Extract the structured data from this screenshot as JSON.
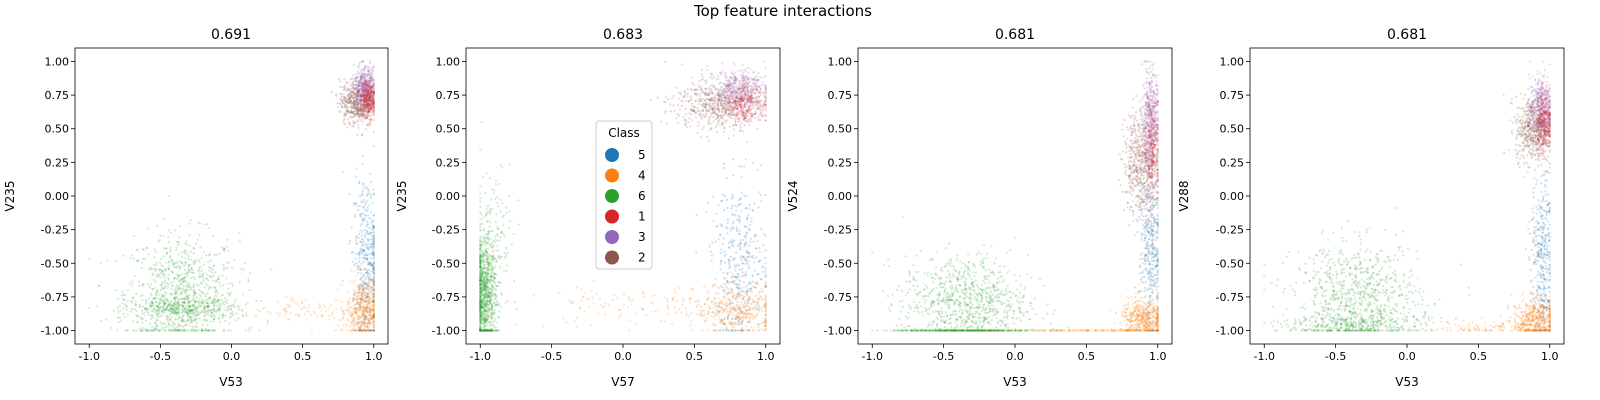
{
  "figure_title": "Top feature interactions",
  "colors": {
    "5": "#1f77b4",
    "4": "#ff7f0e",
    "6": "#2ca02c",
    "1": "#d62728",
    "3": "#9467bd",
    "2": "#8c564b"
  },
  "legend": {
    "title": "Class",
    "entries": [
      "5",
      "4",
      "6",
      "1",
      "3",
      "2"
    ]
  },
  "chart_data": [
    {
      "type": "scatter",
      "title": "0.691",
      "xlabel": "V53",
      "ylabel": "V235",
      "xlim": [
        -1.1,
        1.1
      ],
      "ylim": [
        -1.1,
        1.1
      ],
      "xticks": [
        "-1.0",
        "-0.5",
        "0.0",
        "0.5",
        "1.0"
      ],
      "yticks": [
        "-1.00",
        "-0.75",
        "-0.50",
        "-0.25",
        "0.00",
        "0.25",
        "0.50",
        "0.75",
        "1.00"
      ],
      "grid": false,
      "series": [
        {
          "name": "6",
          "cx": -0.35,
          "cy": -0.72,
          "sx": 0.2,
          "sy": 0.22,
          "n": 800
        },
        {
          "name": "6",
          "cx": -0.35,
          "cy": -0.84,
          "sx": 0.2,
          "sy": 0.05,
          "n": 400
        },
        {
          "name": "4",
          "cx": 0.93,
          "cy": -0.85,
          "sx": 0.06,
          "sy": 0.12,
          "n": 500
        },
        {
          "name": "4",
          "cx": 0.5,
          "cy": -0.85,
          "sx": 0.22,
          "sy": 0.06,
          "n": 90
        },
        {
          "name": "5",
          "cx": 0.95,
          "cy": -0.45,
          "sx": 0.05,
          "sy": 0.3,
          "n": 400
        },
        {
          "name": "2",
          "cx": 0.88,
          "cy": 0.7,
          "sx": 0.06,
          "sy": 0.08,
          "n": 500
        },
        {
          "name": "3",
          "cx": 0.94,
          "cy": 0.8,
          "sx": 0.04,
          "sy": 0.08,
          "n": 400
        },
        {
          "name": "1",
          "cx": 0.96,
          "cy": 0.72,
          "sx": 0.03,
          "sy": 0.08,
          "n": 300
        }
      ]
    },
    {
      "type": "scatter",
      "title": "0.683",
      "xlabel": "V57",
      "ylabel": "V235",
      "xlim": [
        -1.1,
        1.1
      ],
      "ylim": [
        -1.1,
        1.1
      ],
      "xticks": [
        "-1.0",
        "-0.5",
        "0.0",
        "0.5",
        "1.0"
      ],
      "yticks": [
        "-1.00",
        "-0.75",
        "-0.50",
        "-0.25",
        "0.00",
        "0.25",
        "0.50",
        "0.75",
        "1.00"
      ],
      "grid": false,
      "series": [
        {
          "name": "6",
          "cx": -0.97,
          "cy": -0.75,
          "sx": 0.04,
          "sy": 0.22,
          "n": 900
        },
        {
          "name": "6",
          "cx": -0.9,
          "cy": -0.3,
          "sx": 0.08,
          "sy": 0.3,
          "n": 150
        },
        {
          "name": "4",
          "cx": 0.8,
          "cy": -0.85,
          "sx": 0.15,
          "sy": 0.1,
          "n": 400
        },
        {
          "name": "4",
          "cx": 0.1,
          "cy": -0.82,
          "sx": 0.4,
          "sy": 0.08,
          "n": 120
        },
        {
          "name": "5",
          "cx": 0.82,
          "cy": -0.5,
          "sx": 0.1,
          "sy": 0.3,
          "n": 400
        },
        {
          "name": "2",
          "cx": 0.65,
          "cy": 0.68,
          "sx": 0.15,
          "sy": 0.1,
          "n": 500
        },
        {
          "name": "3",
          "cx": 0.8,
          "cy": 0.78,
          "sx": 0.1,
          "sy": 0.08,
          "n": 400
        },
        {
          "name": "1",
          "cx": 0.85,
          "cy": 0.7,
          "sx": 0.08,
          "sy": 0.08,
          "n": 300
        }
      ]
    },
    {
      "type": "scatter",
      "title": "0.681",
      "xlabel": "V53",
      "ylabel": "V524",
      "xlim": [
        -1.1,
        1.1
      ],
      "ylim": [
        -1.1,
        1.1
      ],
      "xticks": [
        "-1.0",
        "-0.5",
        "0.0",
        "0.5",
        "1.0"
      ],
      "yticks": [
        "-1.00",
        "-0.75",
        "-0.50",
        "-0.25",
        "0.00",
        "0.25",
        "0.50",
        "0.75",
        "1.00"
      ],
      "grid": false,
      "series": [
        {
          "name": "6",
          "cx": -0.35,
          "cy": -0.8,
          "sx": 0.22,
          "sy": 0.18,
          "n": 900
        },
        {
          "name": "6",
          "cx": -0.35,
          "cy": -1.0,
          "sx": 0.25,
          "sy": 0.0,
          "n": 300
        },
        {
          "name": "4",
          "cx": 0.9,
          "cy": -0.92,
          "sx": 0.08,
          "sy": 0.08,
          "n": 500
        },
        {
          "name": "4",
          "cx": 0.5,
          "cy": -1.0,
          "sx": 0.25,
          "sy": 0.0,
          "n": 120
        },
        {
          "name": "5",
          "cx": 0.95,
          "cy": -0.4,
          "sx": 0.04,
          "sy": 0.3,
          "n": 350
        },
        {
          "name": "2",
          "cx": 0.88,
          "cy": 0.25,
          "sx": 0.06,
          "sy": 0.2,
          "n": 500
        },
        {
          "name": "3",
          "cx": 0.95,
          "cy": 0.55,
          "sx": 0.03,
          "sy": 0.2,
          "n": 400
        },
        {
          "name": "1",
          "cx": 0.96,
          "cy": 0.35,
          "sx": 0.03,
          "sy": 0.2,
          "n": 300
        }
      ]
    },
    {
      "type": "scatter",
      "title": "0.681",
      "xlabel": "V53",
      "ylabel": "V288",
      "xlim": [
        -1.1,
        1.1
      ],
      "ylim": [
        -1.1,
        1.1
      ],
      "xticks": [
        "-1.0",
        "-0.5",
        "0.0",
        "0.5",
        "1.0"
      ],
      "yticks": [
        "-1.00",
        "-0.75",
        "-0.50",
        "-0.25",
        "0.00",
        "0.25",
        "0.50",
        "0.75",
        "1.00"
      ],
      "grid": false,
      "series": [
        {
          "name": "6",
          "cx": -0.35,
          "cy": -0.75,
          "sx": 0.22,
          "sy": 0.2,
          "n": 800
        },
        {
          "name": "6",
          "cx": -0.35,
          "cy": -0.95,
          "sx": 0.25,
          "sy": 0.04,
          "n": 300
        },
        {
          "name": "4",
          "cx": 0.9,
          "cy": -0.92,
          "sx": 0.08,
          "sy": 0.08,
          "n": 500
        },
        {
          "name": "4",
          "cx": 0.55,
          "cy": -0.98,
          "sx": 0.2,
          "sy": 0.03,
          "n": 100
        },
        {
          "name": "5",
          "cx": 0.95,
          "cy": -0.45,
          "sx": 0.04,
          "sy": 0.3,
          "n": 350
        },
        {
          "name": "2",
          "cx": 0.88,
          "cy": 0.5,
          "sx": 0.06,
          "sy": 0.12,
          "n": 500
        },
        {
          "name": "3",
          "cx": 0.94,
          "cy": 0.65,
          "sx": 0.04,
          "sy": 0.12,
          "n": 400
        },
        {
          "name": "1",
          "cx": 0.96,
          "cy": 0.55,
          "sx": 0.03,
          "sy": 0.12,
          "n": 300
        }
      ]
    }
  ]
}
